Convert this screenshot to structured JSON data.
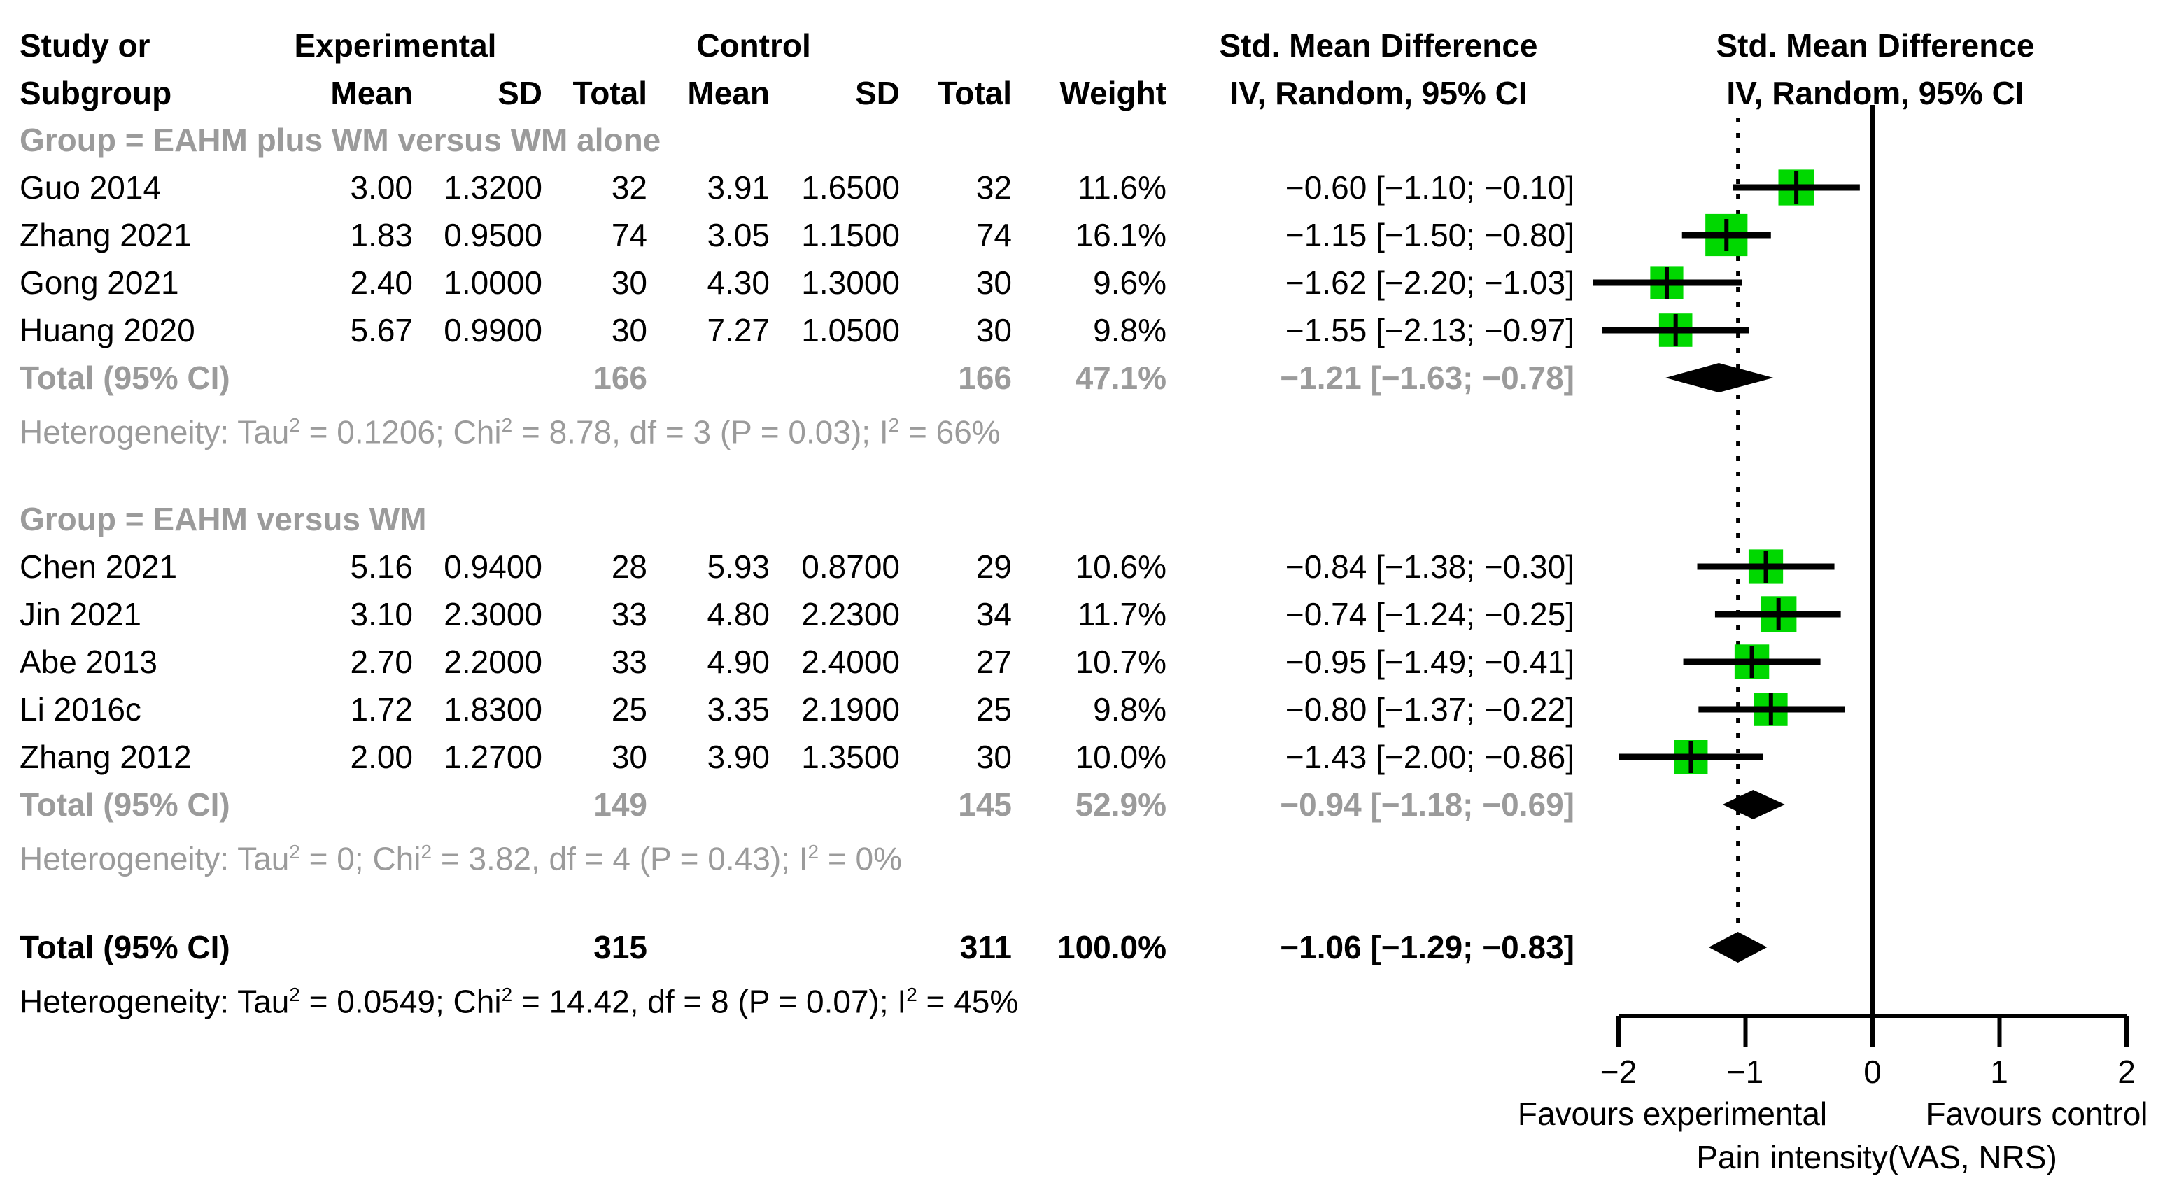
{
  "header": {
    "study_line1": "Study or",
    "study_line2": "Subgroup",
    "experimental": "Experimental",
    "control": "Control",
    "smd": "Std. Mean Difference",
    "mean": "Mean",
    "sd": "SD",
    "total": "Total",
    "weight": "Weight",
    "iv_random": "IV, Random, 95% CI",
    "plot_smd": "Std. Mean Difference",
    "plot_iv": "IV, Random, 95% CI"
  },
  "table": {
    "group1": {
      "label": "Group = EAHM plus WM versus WM alone",
      "studies": [
        {
          "name": "Guo 2014",
          "me": "3.00",
          "se": "1.3200",
          "ne": "32",
          "mc": "3.91",
          "sc": "1.6500",
          "nc": "32",
          "w": "11.6%",
          "ci": "−0.60 [−1.10; −0.10]"
        },
        {
          "name": "Zhang 2021",
          "me": "1.83",
          "se": "0.9500",
          "ne": "74",
          "mc": "3.05",
          "sc": "1.1500",
          "nc": "74",
          "w": "16.1%",
          "ci": "−1.15 [−1.50; −0.80]"
        },
        {
          "name": "Gong 2021",
          "me": "2.40",
          "se": "1.0000",
          "ne": "30",
          "mc": "4.30",
          "sc": "1.3000",
          "nc": "30",
          "w": "9.6%",
          "ci": "−1.62 [−2.20; −1.03]"
        },
        {
          "name": "Huang 2020",
          "me": "5.67",
          "se": "0.9900",
          "ne": "30",
          "mc": "7.27",
          "sc": "1.0500",
          "nc": "30",
          "w": "9.8%",
          "ci": "−1.55 [−2.13; −0.97]"
        }
      ],
      "total": {
        "label": "Total (95% CI)",
        "ne": "166",
        "nc": "166",
        "w": "47.1%",
        "ci": "−1.21 [−1.63; −0.78]"
      },
      "het": [
        "Heterogeneity: Tau",
        "2",
        " = 0.1206; Chi",
        "2",
        " = 8.78, df = 3 (P = 0.03); I",
        "2",
        " = 66%"
      ]
    },
    "group2": {
      "label": "Group = EAHM versus WM",
      "studies": [
        {
          "name": "Chen 2021",
          "me": "5.16",
          "se": "0.9400",
          "ne": "28",
          "mc": "5.93",
          "sc": "0.8700",
          "nc": "29",
          "w": "10.6%",
          "ci": "−0.84 [−1.38; −0.30]"
        },
        {
          "name": "Jin 2021",
          "me": "3.10",
          "se": "2.3000",
          "ne": "33",
          "mc": "4.80",
          "sc": "2.2300",
          "nc": "34",
          "w": "11.7%",
          "ci": "−0.74 [−1.24; −0.25]"
        },
        {
          "name": "Abe 2013",
          "me": "2.70",
          "se": "2.2000",
          "ne": "33",
          "mc": "4.90",
          "sc": "2.4000",
          "nc": "27",
          "w": "10.7%",
          "ci": "−0.95 [−1.49; −0.41]"
        },
        {
          "name": "Li 2016c",
          "me": "1.72",
          "se": "1.8300",
          "ne": "25",
          "mc": "3.35",
          "sc": "2.1900",
          "nc": "25",
          "w": "9.8%",
          "ci": "−0.80 [−1.37; −0.22]"
        },
        {
          "name": "Zhang 2012",
          "me": "2.00",
          "se": "1.2700",
          "ne": "30",
          "mc": "3.90",
          "sc": "1.3500",
          "nc": "30",
          "w": "10.0%",
          "ci": "−1.43 [−2.00; −0.86]"
        }
      ],
      "total": {
        "label": "Total (95% CI)",
        "ne": "149",
        "nc": "145",
        "w": "52.9%",
        "ci": "−0.94 [−1.18; −0.69]"
      },
      "het": [
        "Heterogeneity: Tau",
        "2",
        " = 0; Chi",
        "2",
        " = 3.82, df = 4 (P = 0.43); I",
        "2",
        " = 0%"
      ]
    },
    "overall": {
      "label": "Total (95% CI)",
      "ne": "315",
      "nc": "311",
      "w": "100.0%",
      "ci": "−1.06 [−1.29; −0.83]",
      "het": [
        "Heterogeneity: Tau",
        "2",
        " = 0.0549; Chi",
        "2",
        " = 14.42, df = 8 (P = 0.07); I",
        "2",
        " = 45%"
      ]
    }
  },
  "chart_data": {
    "type": "scatter",
    "variant": "forest-plot",
    "title": "Std. Mean Difference, IV, Random, 95% CI",
    "xlabel": "Pain intensity(VAS, NRS)",
    "favours_left": "Favours experimental",
    "favours_right": "Favours control",
    "xlim": [
      -2.2,
      2.2
    ],
    "ticks": [
      -2,
      -1,
      0,
      1,
      2
    ],
    "tick_labels": [
      "−2",
      "−1",
      "0",
      "1",
      "2"
    ],
    "zero_line": 0,
    "overall_effect_line": -1.06,
    "grid": false,
    "colors": {
      "square": "#00d800",
      "diamond": "#000000",
      "gray_text": "#9b9b9b"
    },
    "groups": [
      {
        "label": "Group = EAHM plus WM versus WM alone",
        "studies": [
          {
            "name": "Guo 2014",
            "est": -0.6,
            "lo": -1.1,
            "hi": -0.1,
            "weight": 11.6
          },
          {
            "name": "Zhang 2021",
            "est": -1.15,
            "lo": -1.5,
            "hi": -0.8,
            "weight": 16.1
          },
          {
            "name": "Gong 2021",
            "est": -1.62,
            "lo": -2.2,
            "hi": -1.03,
            "weight": 9.6
          },
          {
            "name": "Huang 2020",
            "est": -1.55,
            "lo": -2.13,
            "hi": -0.97,
            "weight": 9.8
          }
        ],
        "total": {
          "est": -1.21,
          "lo": -1.63,
          "hi": -0.78,
          "weight": 47.1,
          "n_exp": 166,
          "n_ctrl": 166,
          "heterogeneity": "Tau2 = 0.1206; Chi2 = 8.78, df = 3 (P = 0.03); I2 = 66%"
        }
      },
      {
        "label": "Group = EAHM versus WM",
        "studies": [
          {
            "name": "Chen 2021",
            "est": -0.84,
            "lo": -1.38,
            "hi": -0.3,
            "weight": 10.6
          },
          {
            "name": "Jin 2021",
            "est": -0.74,
            "lo": -1.24,
            "hi": -0.25,
            "weight": 11.7
          },
          {
            "name": "Abe 2013",
            "est": -0.95,
            "lo": -1.49,
            "hi": -0.41,
            "weight": 10.7
          },
          {
            "name": "Li 2016c",
            "est": -0.8,
            "lo": -1.37,
            "hi": -0.22,
            "weight": 9.8
          },
          {
            "name": "Zhang 2012",
            "est": -1.43,
            "lo": -2.0,
            "hi": -0.86,
            "weight": 10.0
          }
        ],
        "total": {
          "est": -0.94,
          "lo": -1.18,
          "hi": -0.69,
          "weight": 52.9,
          "n_exp": 149,
          "n_ctrl": 145,
          "heterogeneity": "Tau2 = 0; Chi2 = 3.82, df = 4 (P = 0.43); I2 = 0%"
        }
      }
    ],
    "overall": {
      "est": -1.06,
      "lo": -1.29,
      "hi": -0.83,
      "weight": 100.0,
      "n_exp": 315,
      "n_ctrl": 311,
      "heterogeneity": "Tau2 = 0.0549; Chi2 = 14.42, df = 8 (P = 0.07); I2 = 45%"
    }
  }
}
